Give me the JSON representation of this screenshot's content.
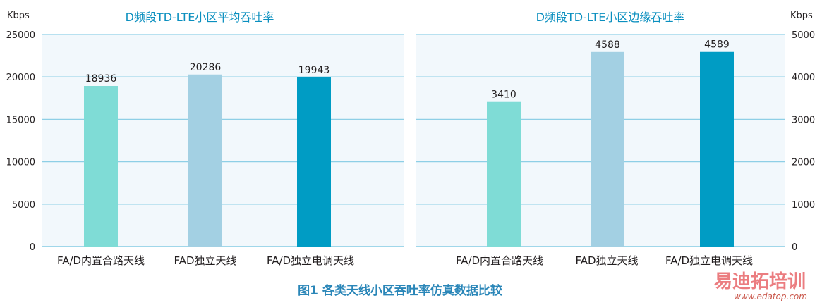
{
  "caption": "图1  各类天线小区吞吐率仿真数据比较",
  "watermark": {
    "brand": "易迪拓培训",
    "url": "www.edatop.com"
  },
  "chart_data": [
    {
      "type": "bar",
      "title": "D频段TD-LTE小区平均吞吐率",
      "unit": "Kbps",
      "axis_side": "left",
      "categories": [
        "FA/D内置合路天线",
        "FAD独立天线",
        "FA/D独立电调天线"
      ],
      "values": [
        18936,
        20286,
        19943
      ],
      "colors": [
        "#7fdcd6",
        "#a3d0e3",
        "#009cc4"
      ],
      "ylim": [
        0,
        25000
      ],
      "yticks": [
        0,
        5000,
        10000,
        15000,
        20000,
        25000
      ],
      "grid": true
    },
    {
      "type": "bar",
      "title": "D频段TD-LTE小区边缘吞吐率",
      "unit": "Kbps",
      "axis_side": "right",
      "categories": [
        "FA/D内置合路天线",
        "FAD独立天线",
        "FA/D独立电调天线"
      ],
      "values": [
        3410,
        4588,
        4589
      ],
      "colors": [
        "#7fdcd6",
        "#a3d0e3",
        "#009cc4"
      ],
      "ylim": [
        0,
        5000
      ],
      "yticks": [
        0,
        1000,
        2000,
        3000,
        4000,
        5000
      ],
      "grid": true
    }
  ]
}
